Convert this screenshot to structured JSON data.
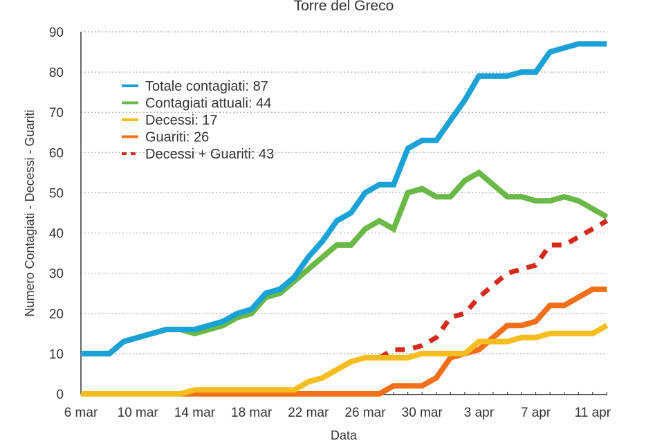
{
  "chart_data": {
    "type": "line",
    "title": "Torre del Greco",
    "xlabel": "Data",
    "ylabel": "Numero Contagiati - Decessi - Guariti",
    "ylim": [
      0,
      90
    ],
    "yticks": [
      "0",
      "10",
      "20",
      "30",
      "40",
      "50",
      "60",
      "70",
      "80",
      "90"
    ],
    "xtick_labels": [
      "6 mar",
      "10 mar",
      "14 mar",
      "18 mar",
      "22 mar",
      "26 mar",
      "30 mar",
      "3 apr",
      "7 apr",
      "11 apr"
    ],
    "x": [
      "6 mar",
      "7 mar",
      "8 mar",
      "9 mar",
      "10 mar",
      "11 mar",
      "12 mar",
      "13 mar",
      "14 mar",
      "15 mar",
      "16 mar",
      "17 mar",
      "18 mar",
      "19 mar",
      "20 mar",
      "21 mar",
      "22 mar",
      "23 mar",
      "24 mar",
      "25 mar",
      "26 mar",
      "27 mar",
      "28 mar",
      "29 mar",
      "30 mar",
      "31 mar",
      "1 apr",
      "2 apr",
      "3 apr",
      "4 apr",
      "5 apr",
      "6 apr",
      "7 apr",
      "8 apr",
      "9 apr",
      "10 apr",
      "11 apr",
      "12 apr"
    ],
    "grid": true,
    "legend_position": "top-left",
    "series": [
      {
        "name": "Totale contagiati: 87",
        "color": "#1aa1d6",
        "dash": false,
        "values": [
          10,
          10,
          10,
          13,
          14,
          15,
          16,
          16,
          16,
          17,
          18,
          20,
          21,
          25,
          26,
          29,
          34,
          38,
          43,
          45,
          50,
          52,
          52,
          61,
          63,
          63,
          68,
          73,
          79,
          79,
          79,
          80,
          80,
          85,
          86,
          87,
          87,
          87
        ]
      },
      {
        "name": "Contagiati attuali: 44",
        "color": "#6ab845",
        "dash": false,
        "values": [
          10,
          10,
          10,
          13,
          14,
          15,
          16,
          16,
          15,
          16,
          17,
          19,
          20,
          24,
          25,
          28,
          31,
          34,
          37,
          37,
          41,
          43,
          41,
          50,
          51,
          49,
          49,
          53,
          55,
          52,
          49,
          49,
          48,
          48,
          49,
          48,
          46,
          44
        ]
      },
      {
        "name": "Decessi: 17",
        "color": "#f5bd1f",
        "dash": false,
        "values": [
          0,
          0,
          0,
          0,
          0,
          0,
          0,
          0,
          1,
          1,
          1,
          1,
          1,
          1,
          1,
          1,
          3,
          4,
          6,
          8,
          9,
          9,
          9,
          9,
          10,
          10,
          10,
          10,
          13,
          13,
          13,
          14,
          14,
          15,
          15,
          15,
          15,
          17
        ]
      },
      {
        "name": "Guariti: 26",
        "color": "#f26f1a",
        "dash": false,
        "values": [
          0,
          0,
          0,
          0,
          0,
          0,
          0,
          0,
          0,
          0,
          0,
          0,
          0,
          0,
          0,
          0,
          0,
          0,
          0,
          0,
          0,
          0,
          2,
          2,
          2,
          4,
          9,
          10,
          11,
          14,
          17,
          17,
          18,
          22,
          22,
          24,
          26,
          26
        ]
      },
      {
        "name": "Decessi + Guariti: 43",
        "color": "#d42a1c",
        "dash": true,
        "values": [
          null,
          null,
          null,
          null,
          null,
          null,
          null,
          null,
          null,
          null,
          null,
          null,
          null,
          null,
          null,
          null,
          null,
          null,
          null,
          null,
          null,
          9,
          11,
          11,
          12,
          14,
          19,
          20,
          24,
          27,
          30,
          31,
          32,
          37,
          37,
          39,
          41,
          43
        ]
      }
    ]
  }
}
